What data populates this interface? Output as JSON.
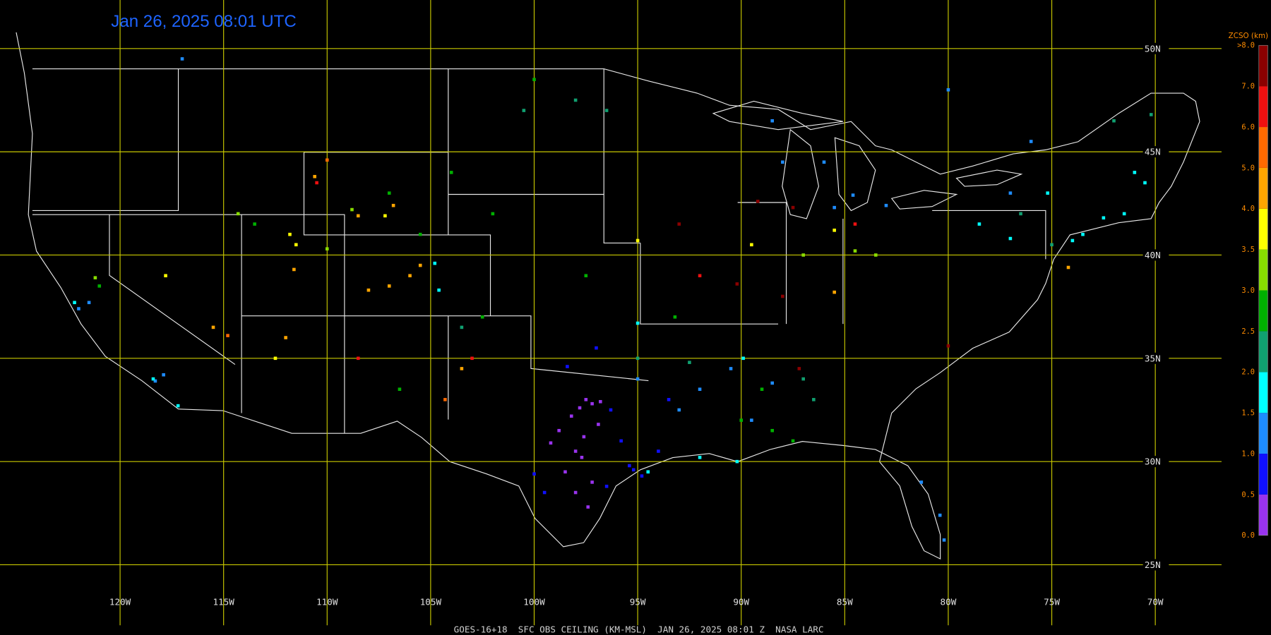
{
  "title": "Jan 26, 2025 08:01 UTC",
  "footer": "GOES-16+18  SFC OBS CEILING (KM-MSL)  JAN 26, 2025 08:01 Z  NASA LARC",
  "map": {
    "lonlim": [
      -125.8,
      -66.8
    ],
    "latlim": [
      52.35,
      21.6
    ],
    "grid_color": "#c8c800",
    "lon_ticks": [
      {
        "value": -120,
        "label": "120W"
      },
      {
        "value": -115,
        "label": "115W"
      },
      {
        "value": -110,
        "label": "110W"
      },
      {
        "value": -105,
        "label": "105W"
      },
      {
        "value": -100,
        "label": "100W"
      },
      {
        "value": -95,
        "label": "95W"
      },
      {
        "value": -90,
        "label": "90W"
      },
      {
        "value": -85,
        "label": "85W"
      },
      {
        "value": -80,
        "label": "80W"
      },
      {
        "value": -75,
        "label": "75W"
      },
      {
        "value": -70,
        "label": "70W"
      }
    ],
    "lat_ticks": [
      {
        "value": 50,
        "label": "50N"
      },
      {
        "value": 45,
        "label": "45N"
      },
      {
        "value": 40,
        "label": "40N"
      },
      {
        "value": 35,
        "label": "35N"
      },
      {
        "value": 30,
        "label": "30N"
      },
      {
        "value": 25,
        "label": "25N"
      }
    ]
  },
  "colorbar": {
    "title": "ZCSO (km)",
    "ticks": [
      {
        "value": 0,
        "label": "0.0"
      },
      0.5,
      {
        "value": 1,
        "label": "1.0"
      },
      1.5,
      {
        "value": 2,
        "label": "2.0"
      },
      2.5,
      {
        "value": 3,
        "label": "3.0"
      },
      3.5,
      {
        "value": 4,
        "label": "4.0"
      },
      {
        "value": 5,
        "label": "5.0"
      },
      {
        "value": 6,
        "label": "6.0"
      },
      {
        "value": 7,
        "label": "7.0"
      },
      {
        "value": 8,
        "label": ">8.0"
      }
    ],
    "colors": [
      "#9933ee",
      "#1010ff",
      "#1e8cff",
      "#00ffff",
      "#10a070",
      "#00b000",
      "#88dd00",
      "#ffff00",
      "#ffa500",
      "#ff6a00",
      "#ee1010",
      "#8b0000"
    ]
  },
  "stations": [
    [
      -97.5,
      33.0,
      0.3
    ],
    [
      -97.2,
      32.8,
      0.3
    ],
    [
      -96.8,
      32.9,
      0.3
    ],
    [
      -97.8,
      32.6,
      0.3
    ],
    [
      -98.2,
      32.2,
      0.4
    ],
    [
      -96.9,
      31.8,
      0.3
    ],
    [
      -97.6,
      31.2,
      0.4
    ],
    [
      -98.0,
      30.5,
      0.3
    ],
    [
      -97.7,
      30.2,
      0.4
    ],
    [
      -98.5,
      29.5,
      0.3
    ],
    [
      -97.2,
      29.0,
      0.4
    ],
    [
      -98.0,
      28.5,
      0.3
    ],
    [
      -97.4,
      27.8,
      0.4
    ],
    [
      -99.2,
      30.9,
      0.3
    ],
    [
      -98.8,
      31.5,
      0.4
    ],
    [
      -96.3,
      32.5,
      0.8
    ],
    [
      -95.8,
      31.0,
      0.7
    ],
    [
      -95.4,
      29.8,
      0.8
    ],
    [
      -95.2,
      29.6,
      0.9
    ],
    [
      -94.8,
      29.3,
      0.8
    ],
    [
      -99.5,
      28.5,
      0.8
    ],
    [
      -100.0,
      29.4,
      0.9
    ],
    [
      -94.0,
      30.5,
      0.7
    ],
    [
      -93.5,
      33.0,
      0.9
    ],
    [
      -96.5,
      28.8,
      0.8
    ],
    [
      -97.0,
      35.5,
      0.8
    ],
    [
      -98.4,
      34.6,
      0.9
    ],
    [
      -95.0,
      34.0,
      1.2
    ],
    [
      -93.0,
      32.5,
      1.2
    ],
    [
      -92.0,
      33.5,
      1.3
    ],
    [
      -90.5,
      34.5,
      1.2
    ],
    [
      -89.5,
      32.0,
      1.2
    ],
    [
      -88.5,
      33.8,
      1.3
    ],
    [
      -117.9,
      34.2,
      1.2
    ],
    [
      -118.3,
      33.9,
      1.3
    ],
    [
      -121.5,
      37.7,
      1.2
    ],
    [
      -122.0,
      37.4,
      1.3
    ],
    [
      -84.6,
      42.9,
      1.2
    ],
    [
      -85.5,
      42.3,
      1.1
    ],
    [
      -83.0,
      42.4,
      1.3
    ],
    [
      -86.0,
      44.5,
      1.2
    ],
    [
      -88.0,
      44.5,
      1.2
    ],
    [
      -80.4,
      27.4,
      1.2
    ],
    [
      -80.2,
      26.2,
      1.3
    ],
    [
      -81.3,
      29.0,
      1.2
    ],
    [
      -77.0,
      43.0,
      1.2
    ],
    [
      -76.0,
      45.5,
      1.1
    ],
    [
      -80.0,
      48.0,
      1.0
    ],
    [
      -88.5,
      46.5,
      1.3
    ],
    [
      -117.0,
      49.5,
      1.2
    ],
    [
      -94.5,
      29.5,
      1.8
    ],
    [
      -92.0,
      30.2,
      1.7
    ],
    [
      -90.2,
      30.0,
      1.8
    ],
    [
      -89.9,
      35.0,
      1.8
    ],
    [
      -95.0,
      36.7,
      1.9
    ],
    [
      -104.8,
      39.6,
      1.8
    ],
    [
      -104.6,
      38.3,
      1.7
    ],
    [
      -117.2,
      32.7,
      1.8
    ],
    [
      -118.4,
      34.0,
      1.9
    ],
    [
      -122.2,
      37.7,
      1.8
    ],
    [
      -74.0,
      40.7,
      1.8
    ],
    [
      -73.5,
      41.0,
      1.7
    ],
    [
      -72.5,
      41.8,
      1.9
    ],
    [
      -71.5,
      42.0,
      1.8
    ],
    [
      -71.0,
      44.0,
      1.8
    ],
    [
      -70.5,
      43.5,
      1.7
    ],
    [
      -75.2,
      43.0,
      1.8
    ],
    [
      -78.5,
      41.5,
      1.9
    ],
    [
      -77.0,
      40.8,
      1.8
    ],
    [
      -75.0,
      40.5,
      2.2
    ],
    [
      -76.5,
      42.0,
      2.3
    ],
    [
      -92.5,
      34.8,
      2.2
    ],
    [
      -87.0,
      34.0,
      2.3
    ],
    [
      -86.5,
      33.0,
      2.2
    ],
    [
      -103.5,
      36.5,
      2.3
    ],
    [
      -100.5,
      47.0,
      2.4
    ],
    [
      -98.0,
      47.5,
      2.3
    ],
    [
      -96.5,
      47.0,
      2.2
    ],
    [
      -95.0,
      35.0,
      2.3
    ],
    [
      -72.0,
      46.5,
      2.3
    ],
    [
      -70.2,
      46.8,
      2.2
    ],
    [
      -90.0,
      32.0,
      2.8
    ],
    [
      -88.5,
      31.5,
      2.7
    ],
    [
      -87.5,
      31.0,
      2.9
    ],
    [
      -89.0,
      33.5,
      2.7
    ],
    [
      -93.2,
      37.0,
      2.8
    ],
    [
      -105.5,
      41.0,
      2.8
    ],
    [
      -107.0,
      43.0,
      2.7
    ],
    [
      -104.0,
      44.0,
      2.9
    ],
    [
      -102.0,
      42.0,
      2.8
    ],
    [
      -113.5,
      41.5,
      2.7
    ],
    [
      -100.0,
      48.5,
      2.8
    ],
    [
      -121.0,
      38.5,
      2.9
    ],
    [
      -102.5,
      37.0,
      2.8
    ],
    [
      -106.5,
      33.5,
      2.7
    ],
    [
      -97.5,
      39.0,
      2.9
    ],
    [
      -87.0,
      40.0,
      3.3
    ],
    [
      -84.5,
      40.2,
      3.2
    ],
    [
      -83.5,
      40.0,
      3.3
    ],
    [
      -110.0,
      40.3,
      3.4
    ],
    [
      -114.3,
      42.0,
      3.2
    ],
    [
      -121.2,
      38.9,
      3.3
    ],
    [
      -108.8,
      42.2,
      3.2
    ],
    [
      -111.8,
      41.0,
      3.8
    ],
    [
      -111.5,
      40.5,
      3.7
    ],
    [
      -117.8,
      39.0,
      3.8
    ],
    [
      -85.5,
      41.2,
      3.8
    ],
    [
      -95.0,
      40.7,
      3.7
    ],
    [
      -107.2,
      41.9,
      3.8
    ],
    [
      -89.5,
      40.5,
      3.9
    ],
    [
      -112.5,
      35.0,
      3.8
    ],
    [
      -110.6,
      43.8,
      4.3
    ],
    [
      -108.5,
      41.9,
      4.6
    ],
    [
      -106.8,
      42.4,
      4.4
    ],
    [
      -105.5,
      39.5,
      4.5
    ],
    [
      -106.0,
      39.0,
      4.7
    ],
    [
      -107.0,
      38.5,
      4.3
    ],
    [
      -108.0,
      38.3,
      4.6
    ],
    [
      -111.6,
      39.3,
      4.8
    ],
    [
      -103.5,
      34.5,
      4.5
    ],
    [
      -115.5,
      36.5,
      4.4
    ],
    [
      -112.0,
      36.0,
      4.7
    ],
    [
      -85.5,
      38.2,
      4.5
    ],
    [
      -74.2,
      39.4,
      4.6
    ],
    [
      -110.0,
      44.6,
      5.4
    ],
    [
      -114.8,
      36.1,
      5.6
    ],
    [
      -104.3,
      33.0,
      5.3
    ],
    [
      -92.0,
      39.0,
      6.8
    ],
    [
      -90.2,
      38.6,
      7.0
    ],
    [
      -103.0,
      35.0,
      6.8
    ],
    [
      -108.5,
      35.0,
      6.9
    ],
    [
      -110.5,
      43.5,
      6.5
    ],
    [
      -88.0,
      38.0,
      7.2
    ],
    [
      -84.5,
      41.5,
      6.6
    ],
    [
      -80.0,
      35.6,
      7.0
    ],
    [
      -93.0,
      41.5,
      8.5
    ],
    [
      -89.2,
      42.6,
      8.5
    ],
    [
      -87.2,
      34.5,
      8.5
    ],
    [
      -87.5,
      42.3,
      8.5
    ]
  ]
}
